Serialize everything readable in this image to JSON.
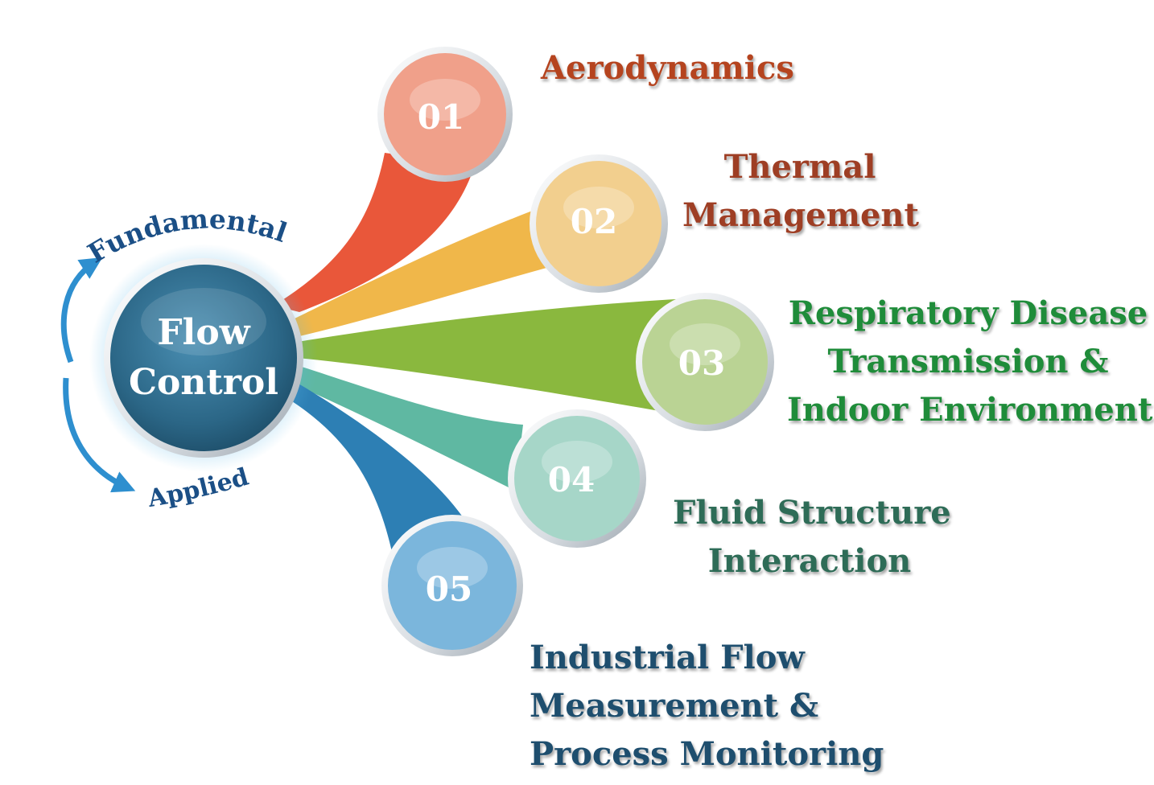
{
  "center": {
    "line1": "Flow",
    "line2": "Control"
  },
  "arc_labels": {
    "top": "Fundamental",
    "bottom": "Applied"
  },
  "nodes": [
    {
      "num": "01",
      "color": "#e9573a",
      "circle": "#f0a08a",
      "text_color": "#b5441f",
      "lines": [
        "Aerodynamics"
      ]
    },
    {
      "num": "02",
      "color": "#f0b74a",
      "circle": "#f2cf8e",
      "text_color": "#9e3e24",
      "lines": [
        "Thermal",
        "Management"
      ]
    },
    {
      "num": "03",
      "color": "#8ab83e",
      "circle": "#bad394",
      "text_color": "#1f8c3a",
      "lines": [
        "Respiratory Disease",
        "Transmission &",
        "Indoor Environment"
      ]
    },
    {
      "num": "04",
      "color": "#5fb8a2",
      "circle": "#a6d6c8",
      "text_color": "#2e6c57",
      "lines": [
        "Fluid Structure",
        "Interaction"
      ]
    },
    {
      "num": "05",
      "color": "#2d7fb4",
      "circle": "#7bb6dc",
      "text_color": "#1e4e6e",
      "lines": [
        "Industrial Flow",
        "Measurement &",
        "Process Monitoring"
      ]
    }
  ],
  "colors": {
    "center_fill": "#2b6686",
    "arrow": "#2e8fcf",
    "arc_text": "#1b4f86"
  }
}
